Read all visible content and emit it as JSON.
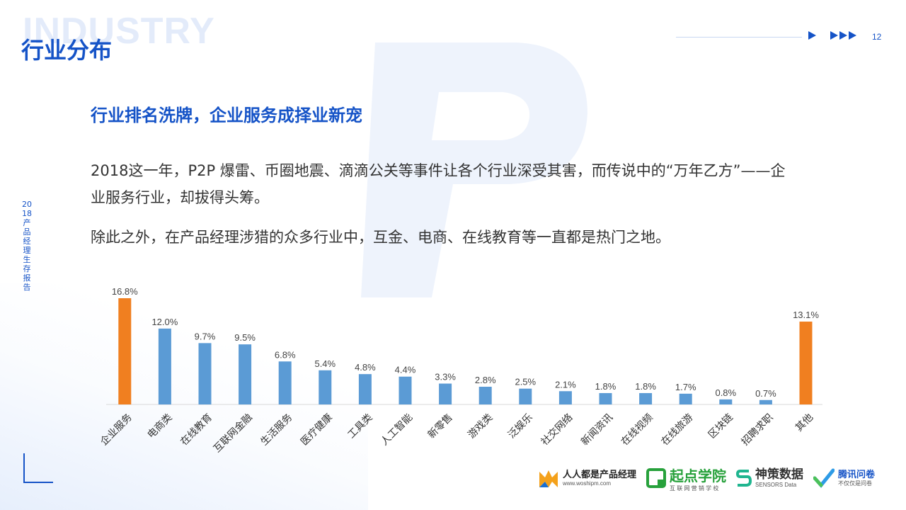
{
  "header": {
    "watermark": "INDUSTRY",
    "title": "行业分布",
    "page_number": "12"
  },
  "side_label": "2018产品经理生存报告",
  "subtitle": "行业排名洗牌，企业服务成择业新宠",
  "paragraphs": [
    "2018这一年，P2P 爆雷、币圈地震、滴滴公关等事件让各个行业深受其害，而传说中的“万年乙方”——企业服务行业，却拔得头筹。",
    "除此之外，在产品经理涉猎的众多行业中，互金、电商、在线教育等一直都是热门之地。"
  ],
  "logos": {
    "woshipm_name": "人人都是产品经理",
    "woshipm_url": "www.woshipm.com",
    "qidian": "起点学院",
    "qidian_sub": "互 联 网 营 销 学 校",
    "sensors": "神策数据",
    "sensors_sub": "SENSORS Data",
    "tencent": "腾讯问卷",
    "tencent_sub": "不仅仅是问卷"
  },
  "colors": {
    "accent_blue": "#1553c7",
    "bar_blue": "#5b9bd5",
    "bar_orange": "#f07f20"
  },
  "chart_data": {
    "type": "bar",
    "categories": [
      "企业服务",
      "电商类",
      "在线教育",
      "互联网金融",
      "生活服务",
      "医疗健康",
      "工具类",
      "人工智能",
      "新零售",
      "游戏类",
      "泛娱乐",
      "社交网络",
      "新闻资讯",
      "在线视频",
      "在线旅游",
      "区块链",
      "招聘求职",
      "其他"
    ],
    "values": [
      16.8,
      12.0,
      9.7,
      9.5,
      6.8,
      5.4,
      4.8,
      4.4,
      3.3,
      2.8,
      2.5,
      2.1,
      1.8,
      1.8,
      1.7,
      0.8,
      0.7,
      13.1
    ],
    "data_labels": [
      "16.8%",
      "12.0%",
      "9.7%",
      "9.5%",
      "6.8%",
      "5.4%",
      "4.8%",
      "4.4%",
      "3.3%",
      "2.8%",
      "2.5%",
      "2.1%",
      "1.8%",
      "1.8%",
      "1.7%",
      "0.8%",
      "0.7%",
      "13.1%"
    ],
    "highlight": [
      0,
      17
    ],
    "unit": "%",
    "title": "",
    "xlabel": "",
    "ylabel": "",
    "grid": false
  }
}
